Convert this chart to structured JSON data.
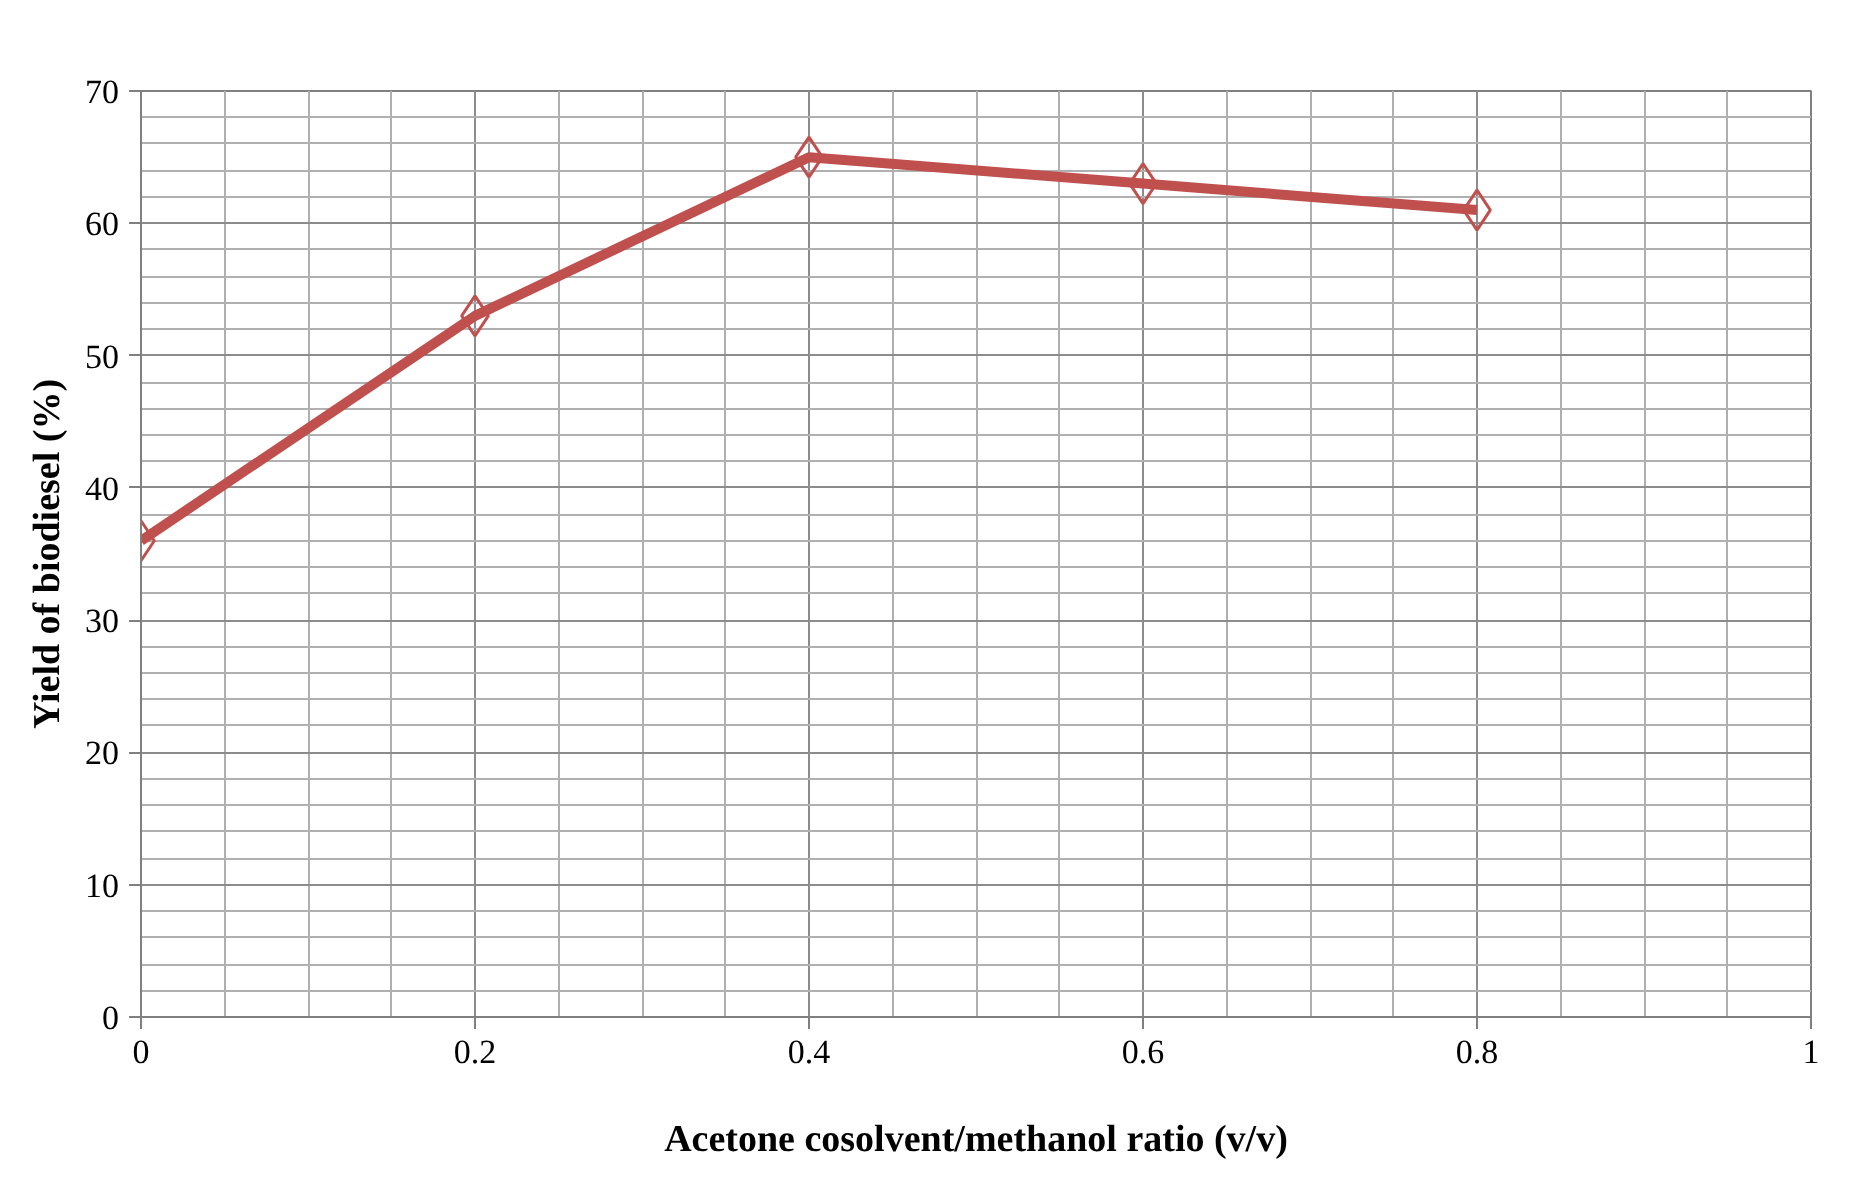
{
  "chart_data": {
    "type": "line",
    "xlabel": "Acetone cosolvent/methanol ratio (v/v)",
    "ylabel": "Yield of biodiesel (%)",
    "x": [
      0,
      0.2,
      0.4,
      0.6,
      0.8
    ],
    "series": [
      {
        "color": "#c0504d",
        "values": [
          36,
          53,
          65,
          63,
          61
        ]
      }
    ],
    "xlim": [
      0,
      1
    ],
    "ylim": [
      0,
      70
    ],
    "xticks": [
      0,
      0.2,
      0.4,
      0.6,
      0.8,
      1
    ],
    "yticks": [
      0,
      10,
      20,
      30,
      40,
      50,
      60,
      70
    ],
    "grid": true,
    "marker": "diamond",
    "line_style": "solid"
  }
}
